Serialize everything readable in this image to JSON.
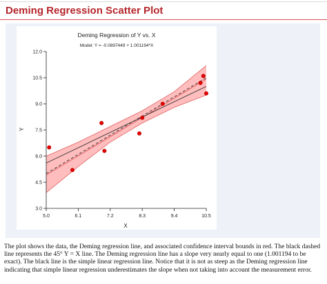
{
  "page": {
    "heading": "Deming Regression Scatter Plot",
    "caption": "The plot shows the data, the Deming regression line, and associated confidence interval bounds in red. The black dashed line represents the 45° Y = X line. The Deming regression line has a slope very nearly equal to one (1.001194 to be exact). The black line is the simple linear regression line. Notice that it is not as steep as the Deming regression line indicating that simple linear regression underestimates the slope when not taking into account the measurement error."
  },
  "chart_data": {
    "type": "scatter",
    "title": "Deming Regression of Y vs. X",
    "subtitle": "Model: Y = -0.0897449 + 1.001194*X",
    "xlabel": "X",
    "ylabel": "Y",
    "xlim": [
      5.0,
      10.5
    ],
    "ylim": [
      3.0,
      12.0
    ],
    "xticks": [
      "5.0",
      "6.1",
      "7.2",
      "8.3",
      "9.4",
      "10.5"
    ],
    "yticks": [
      "3.0",
      "4.5",
      "6.0",
      "7.5",
      "9.0",
      "10.5",
      "12.0"
    ],
    "grid": false,
    "points": {
      "x": [
        5.1,
        5.9,
        6.9,
        7.0,
        8.2,
        8.3,
        9.0,
        10.3,
        10.4,
        10.5
      ],
      "y": [
        6.5,
        5.2,
        7.9,
        6.3,
        7.3,
        8.2,
        9.0,
        10.2,
        10.6,
        9.6
      ],
      "color": "#e00000"
    },
    "deming_line": {
      "intercept": -0.0897449,
      "slope": 1.001194,
      "color": "#e06060"
    },
    "identity_line": {
      "intercept": 0,
      "slope": 1,
      "style": "dashed",
      "color": "#333333"
    },
    "ols_line": {
      "endpoints": {
        "x": [
          5.0,
          10.5
        ],
        "y": [
          5.6,
          10.0
        ]
      },
      "color": "#333333"
    },
    "confidence_band": {
      "x": [
        5.0,
        6.1,
        7.2,
        8.3,
        9.4,
        10.5
      ],
      "lower": [
        3.9,
        5.4,
        6.8,
        7.9,
        8.8,
        9.5
      ],
      "upper": [
        6.0,
        6.8,
        7.7,
        8.6,
        9.7,
        11.2
      ],
      "fill": "#ffbdbd",
      "stroke": "#e06060"
    }
  }
}
